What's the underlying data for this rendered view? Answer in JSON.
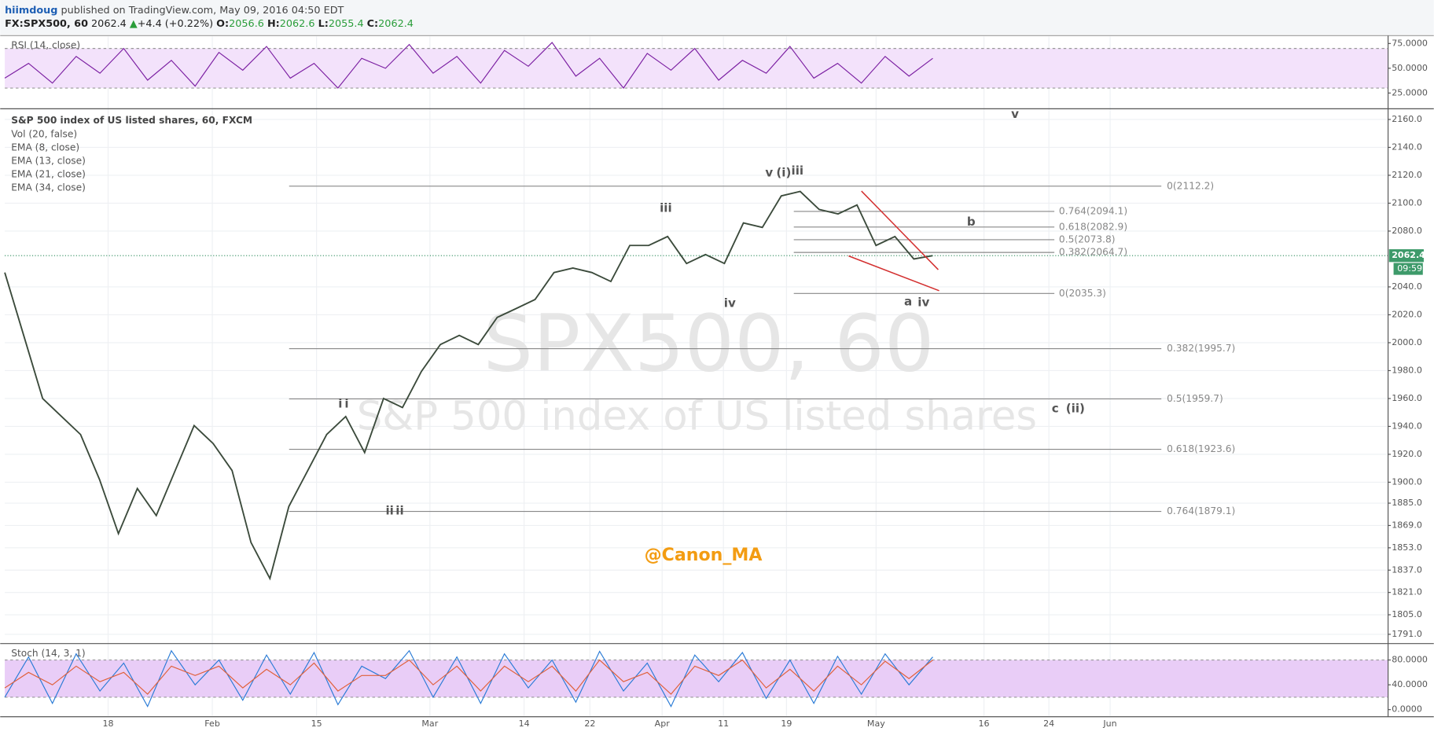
{
  "header": {
    "author": "hiimdoug",
    "published": "published on TradingView.com, May 09, 2016 04:50 EDT",
    "symbol": "FX:SPX500, 60",
    "last": "2062.4",
    "change": "+4.4 (+0.22%)",
    "ohlc": [
      {
        "label": "O:",
        "value": "2056.6"
      },
      {
        "label": "H:",
        "value": "2062.6"
      },
      {
        "label": "L:",
        "value": "2055.4"
      },
      {
        "label": "C:",
        "value": "2062.4"
      }
    ]
  },
  "x_axis_labels": [
    "18",
    "Feb",
    "15",
    "Mar",
    "14",
    "22",
    "Apr",
    "11",
    "19",
    "May",
    "16",
    "24",
    "Jun"
  ],
  "wave_labels": [
    "v",
    "v",
    "(i)",
    "iii",
    "iii",
    "b",
    "iv",
    "a",
    "iv",
    "i",
    "i",
    "c",
    "(ii)",
    "ii",
    "ii"
  ],
  "chart_data": [
    {
      "type": "line",
      "title": "RSI (14, close)",
      "ylim": [
        10,
        82
      ],
      "band": [
        30,
        70
      ],
      "band_color": "#f3e2fb",
      "yticks": [
        {
          "value": 75,
          "label": "75.0000"
        },
        {
          "value": 50,
          "label": "50.0000"
        },
        {
          "value": 25,
          "label": "25.0000"
        }
      ],
      "series": [
        {
          "color": "#7b1fa2",
          "values": [
            40,
            55,
            35,
            62,
            45,
            70,
            38,
            58,
            32,
            66,
            48,
            72,
            40,
            55,
            30,
            60,
            50,
            74,
            45,
            62,
            35,
            68,
            52,
            76,
            42,
            60,
            30,
            65,
            48,
            70,
            38,
            58,
            45,
            72,
            40,
            55,
            35,
            62,
            42,
            60
          ]
        }
      ]
    },
    {
      "type": "line",
      "title": "S&P 500 index of US listed shares, 60, FXCM",
      "watermark": "SPX500, 60",
      "watermark_subtitle": "S&P 500 index of US listed shares",
      "indicators": [
        "Vol (20, false)",
        "EMA (8, close)",
        "EMA (13, close)",
        "EMA (21, close)",
        "EMA (34, close)"
      ],
      "ylim": [
        1785,
        2167
      ],
      "grid": true,
      "yticks": [
        {
          "value": 2160,
          "label": "2160.0"
        },
        {
          "value": 2140,
          "label": "2140.0"
        },
        {
          "value": 2120,
          "label": "2120.0"
        },
        {
          "value": 2100,
          "label": "2100.0"
        },
        {
          "value": 2080,
          "label": "2080.0"
        },
        {
          "value": 2040,
          "label": "2040.0"
        },
        {
          "value": 2020,
          "label": "2020.0"
        },
        {
          "value": 2000,
          "label": "2000.0"
        },
        {
          "value": 1980,
          "label": "1980.0"
        },
        {
          "value": 1960,
          "label": "1960.0"
        },
        {
          "value": 1940,
          "label": "1940.0"
        },
        {
          "value": 1920,
          "label": "1920.0"
        },
        {
          "value": 1900,
          "label": "1900.0"
        },
        {
          "value": 1885,
          "label": "1885.0"
        },
        {
          "value": 1869,
          "label": "1869.0"
        },
        {
          "value": 1853,
          "label": "1853.0"
        },
        {
          "value": 1837,
          "label": "1837.0"
        },
        {
          "value": 1821,
          "label": "1821.0"
        },
        {
          "value": 1805,
          "label": "1805.0"
        },
        {
          "value": 1791,
          "label": "1791.0"
        }
      ],
      "series": [
        {
          "color": "#3b4a3b",
          "values": [
            2050.3,
            2005.2,
            1960,
            1947.1,
            1934.2,
            1902,
            1863.2,
            1895.5,
            1876.1,
            1908.4,
            1940.6,
            1927.7,
            1908.4,
            1856.8,
            1831,
            1882.6,
            1908.4,
            1934.2,
            1947.1,
            1921.3,
            1960,
            1953.5,
            1979.4,
            1998.7,
            2005.2,
            1998.7,
            2018.1,
            2024.5,
            2031,
            2050.3,
            2053.5,
            2050.3,
            2043.9,
            2069.7,
            2069.7,
            2076.1,
            2056.8,
            2063.2,
            2056.8,
            2085.8,
            2082.6,
            2105.2,
            2108.4,
            2095.5,
            2092.3,
            2098.7,
            2069.7,
            2076.1,
            2060,
            2062.4
          ]
        }
      ],
      "last_price": 2062.4,
      "last_price_label": "2062.4",
      "countdown": "09:59",
      "fib_levels": [
        {
          "label": "0(2112.2)",
          "value": 2112.2
        },
        {
          "label": "0.382(1995.7)",
          "value": 1995.7
        },
        {
          "label": "0.5(1959.7)",
          "value": 1959.7
        },
        {
          "label": "0.618(1923.6)",
          "value": 1923.6
        },
        {
          "label": "0.764(1879.1)",
          "value": 1879.1
        }
      ],
      "fib_levels_minor": [
        {
          "label": "0.764(2094.1)",
          "value": 2094.1
        },
        {
          "label": "0.618(2082.9)",
          "value": 2082.9
        },
        {
          "label": "0.5(2073.8)",
          "value": 2073.8
        },
        {
          "label": "0.382(2064.7)",
          "value": 2064.7
        },
        {
          "label": "0(2035.3)",
          "value": 2035.3
        }
      ],
      "annotation": "@Canon_MA"
    },
    {
      "type": "line",
      "title": "Stoch (14, 3, 1)",
      "ylim": [
        -10,
        105
      ],
      "band": [
        20,
        80
      ],
      "band_color": "#e9cdf7",
      "yticks": [
        {
          "value": 80,
          "label": "80.0000"
        },
        {
          "value": 40,
          "label": "40.0000"
        },
        {
          "value": 0,
          "label": "0.0000"
        }
      ],
      "series": [
        {
          "color": "#2a7bd6",
          "values": [
            20,
            85,
            10,
            90,
            30,
            75,
            5,
            95,
            40,
            80,
            15,
            88,
            25,
            92,
            8,
            70,
            50,
            95,
            20,
            85,
            10,
            90,
            35,
            80,
            12,
            94,
            30,
            75,
            5,
            88,
            45,
            92,
            18,
            80,
            10,
            86,
            25,
            90,
            40,
            85
          ]
        },
        {
          "color": "#e0603a",
          "values": [
            35,
            60,
            40,
            70,
            45,
            60,
            25,
            70,
            55,
            70,
            35,
            65,
            40,
            75,
            30,
            55,
            55,
            80,
            40,
            70,
            30,
            70,
            45,
            70,
            30,
            80,
            45,
            60,
            25,
            70,
            55,
            80,
            35,
            65,
            30,
            70,
            40,
            78,
            50,
            80
          ]
        }
      ]
    }
  ]
}
